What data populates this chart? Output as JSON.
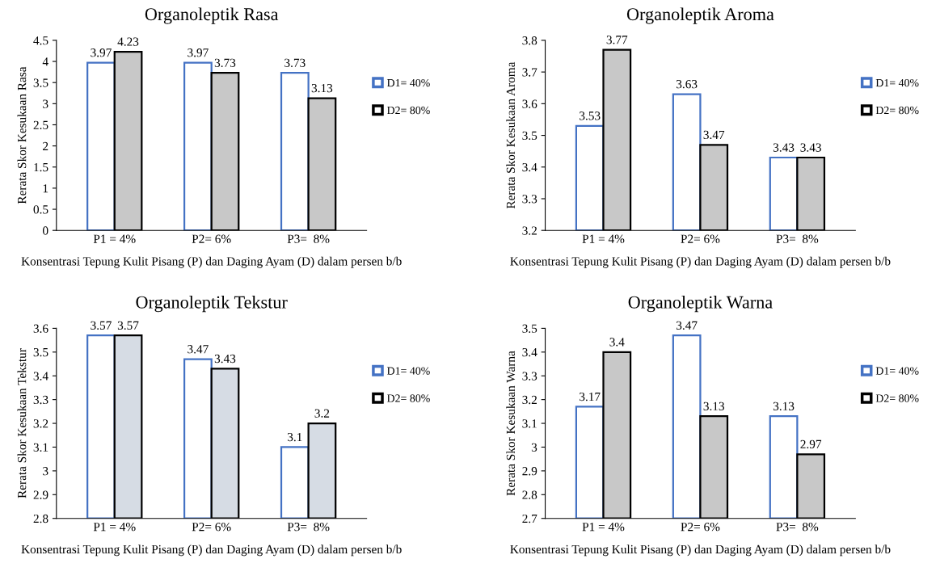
{
  "chart_data": [
    {
      "type": "bar",
      "title": "Organoleptik Rasa",
      "xlabel": "Konsentrasi Tepung Kulit Pisang (P) dan Daging Ayam (D) dalam persen b/b",
      "ylabel": "Rerata Skor Kesukaan Rasa",
      "categories": [
        "P1 = 4%",
        "P2= 6%",
        "P3=  8%"
      ],
      "series": [
        {
          "name": "D1= 40%",
          "color": "#ffffff",
          "values": [
            3.97,
            3.97,
            3.73
          ]
        },
        {
          "name": "D2= 80%",
          "color": "#c8c8c8",
          "values": [
            4.23,
            3.73,
            3.13
          ]
        }
      ],
      "ylim": [
        0,
        4.5
      ],
      "yticks": [
        0,
        0.5,
        1,
        1.5,
        2,
        2.5,
        3,
        3.5,
        4,
        4.5
      ],
      "data_labels": true,
      "legend": "right",
      "grid": false
    },
    {
      "type": "bar",
      "title": "Organoleptik Aroma",
      "xlabel": "Konsentrasi Tepung Kulit Pisang (P) dan Daging Ayam (D) dalam persen b/b",
      "ylabel": "Rerata Skor Kesukaan Aroma",
      "categories": [
        "P1 = 4%",
        "P2= 6%",
        "P3=  8%"
      ],
      "series": [
        {
          "name": "D1= 40%",
          "color": "#ffffff",
          "values": [
            3.53,
            3.63,
            3.43
          ]
        },
        {
          "name": "D2= 80%",
          "color": "#c8c8c8",
          "values": [
            3.77,
            3.47,
            3.43
          ]
        }
      ],
      "ylim": [
        3.2,
        3.8
      ],
      "yticks": [
        3.2,
        3.3,
        3.4,
        3.5,
        3.6,
        3.7,
        3.8
      ],
      "data_labels": true,
      "legend": "right",
      "grid": false
    },
    {
      "type": "bar",
      "title": "Organoleptik Tekstur",
      "xlabel": "Konsentrasi Tepung Kulit Pisang (P) dan Daging Ayam (D) dalam persen b/b",
      "ylabel": "Rerata Skor Kesukaan Tekstur",
      "categories": [
        "P1 = 4%",
        "P2= 6%",
        "P3=  8%"
      ],
      "series": [
        {
          "name": "D1= 40%",
          "color": "#ffffff",
          "values": [
            3.57,
            3.47,
            3.1
          ]
        },
        {
          "name": "D2= 80%",
          "color": "#d6dce4",
          "values": [
            3.57,
            3.43,
            3.2
          ]
        }
      ],
      "ylim": [
        2.8,
        3.6
      ],
      "yticks": [
        2.8,
        2.9,
        3,
        3.1,
        3.2,
        3.3,
        3.4,
        3.5,
        3.6
      ],
      "data_labels": true,
      "legend": "right",
      "grid": false
    },
    {
      "type": "bar",
      "title": "Organoleptik Warna",
      "xlabel": "Konsentrasi Tepung Kulit Pisang (P) dan Daging Ayam (D) dalam persen b/b",
      "ylabel": "Rerata Skor Kesukaan Warna",
      "categories": [
        "P1 = 4%",
        "P2= 6%",
        "P3=  8%"
      ],
      "series": [
        {
          "name": "D1= 40%",
          "color": "#ffffff",
          "values": [
            3.17,
            3.47,
            3.13
          ]
        },
        {
          "name": "D2= 80%",
          "color": "#c8c8c8",
          "values": [
            3.4,
            3.13,
            2.97
          ]
        }
      ],
      "ylim": [
        2.7,
        3.5
      ],
      "yticks": [
        2.7,
        2.8,
        2.9,
        3,
        3.1,
        3.2,
        3.3,
        3.4,
        3.5
      ],
      "data_labels": true,
      "legend": "right",
      "grid": false
    }
  ]
}
